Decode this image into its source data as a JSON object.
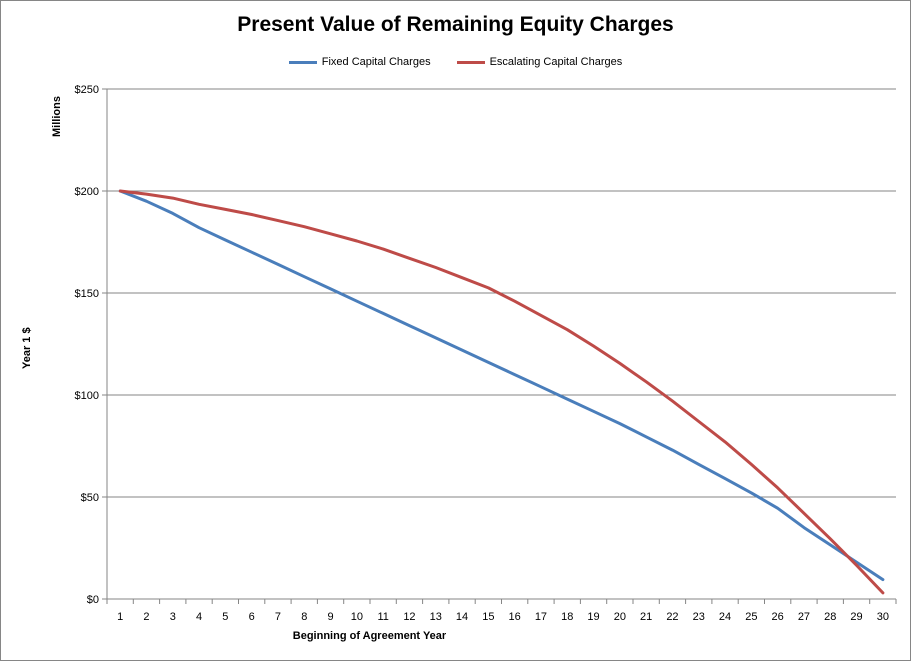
{
  "chart_data": {
    "type": "line",
    "title": "Present Value of Remaining Equity Charges",
    "xlabel": "Beginning  of Agreement Year",
    "ylabel": "Year 1 $",
    "yunits": "Millions",
    "ylim": [
      0,
      250
    ],
    "yticks": [
      0,
      50,
      100,
      150,
      200,
      250
    ],
    "ytick_labels": [
      "$0",
      "$50",
      "$100",
      "$150",
      "$200",
      "$250"
    ],
    "x": [
      1,
      2,
      3,
      4,
      5,
      6,
      7,
      8,
      9,
      10,
      11,
      12,
      13,
      14,
      15,
      16,
      17,
      18,
      19,
      20,
      21,
      22,
      23,
      24,
      25,
      26,
      27,
      28,
      29,
      30
    ],
    "grid": "horizontal",
    "legend_position": "top",
    "series": [
      {
        "name": "Fixed Capital Charges",
        "color": "#4a7ebb",
        "values": [
          200,
          195,
          189,
          182,
          176,
          170,
          164,
          158,
          152,
          146,
          140,
          134,
          128,
          122,
          116,
          110,
          104,
          98,
          92,
          86,
          79.5,
          73,
          66,
          59,
          52,
          44.5,
          35,
          26.5,
          18,
          9.5
        ]
      },
      {
        "name": "Escalating Capital Charges",
        "color": "#be4b48",
        "values": [
          200,
          198.5,
          196.5,
          193.5,
          191,
          188.5,
          185.5,
          182.5,
          179,
          175.5,
          171.5,
          167,
          162.5,
          157.5,
          152.5,
          146,
          139,
          132,
          124,
          115.5,
          106.5,
          97,
          87,
          77,
          66,
          54.5,
          42,
          29.5,
          16.5,
          3
        ]
      }
    ]
  }
}
